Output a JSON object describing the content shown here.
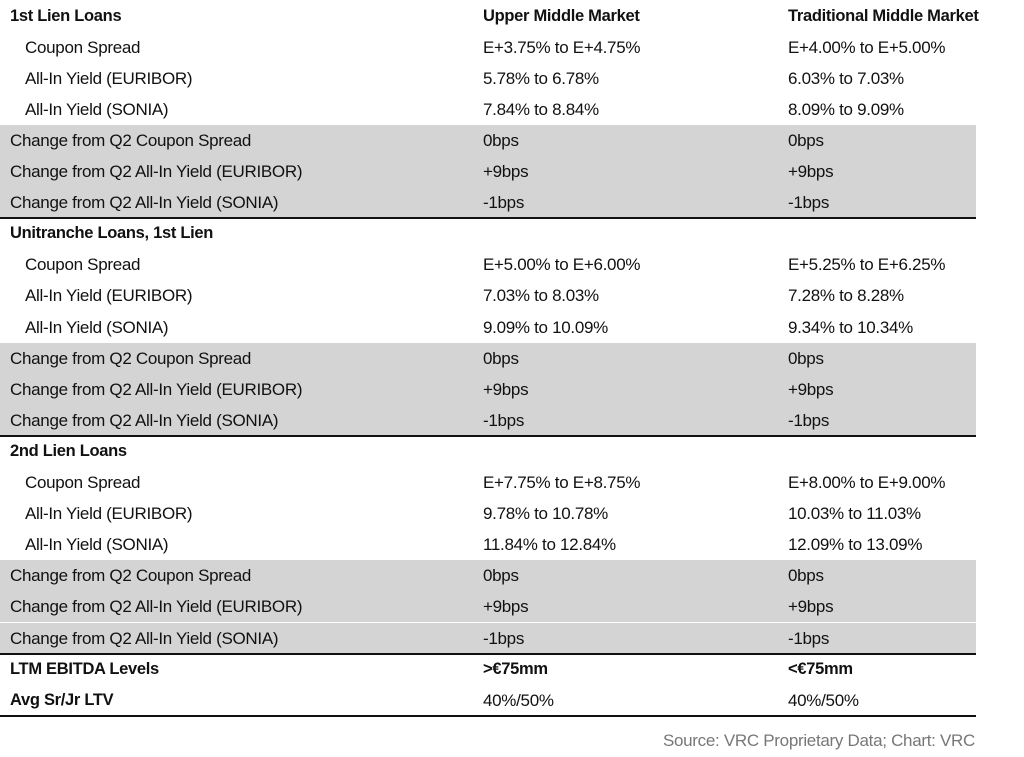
{
  "table": {
    "header": [
      "1st Lien Loans",
      "Upper Middle Market",
      "Traditional Middle Market"
    ],
    "sections": [
      {
        "rows": [
          [
            "Coupon Spread",
            "E+3.75% to E+4.75%",
            "E+4.00% to E+5.00%"
          ],
          [
            "All-In Yield (EURIBOR)",
            "5.78% to 6.78%",
            "6.03% to 7.03%"
          ],
          [
            "All-In Yield (SONIA)",
            "7.84% to 8.84%",
            "8.09% to 9.09%"
          ]
        ],
        "changes": [
          [
            "Change from Q2 Coupon Spread",
            "0bps",
            "0bps"
          ],
          [
            "Change from Q2 All-In Yield (EURIBOR)",
            "+9bps",
            "+9bps"
          ],
          [
            "Change from Q2 All-In Yield (SONIA)",
            "-1bps",
            "-1bps"
          ]
        ]
      },
      {
        "title": "Unitranche Loans, 1st Lien",
        "rows": [
          [
            "Coupon Spread",
            "E+5.00% to E+6.00%",
            "E+5.25% to E+6.25%"
          ],
          [
            "All-In Yield (EURIBOR)",
            "7.03% to 8.03%",
            "7.28% to 8.28%"
          ],
          [
            "All-In Yield (SONIA)",
            "9.09% to 10.09%",
            "9.34% to 10.34%"
          ]
        ],
        "changes": [
          [
            "Change from Q2 Coupon Spread",
            "0bps",
            "0bps"
          ],
          [
            "Change from Q2 All-In Yield (EURIBOR)",
            "+9bps",
            "+9bps"
          ],
          [
            "Change from Q2 All-In Yield (SONIA)",
            "-1bps",
            "-1bps"
          ]
        ]
      },
      {
        "title": "2nd Lien Loans",
        "rows": [
          [
            "Coupon Spread",
            "E+7.75% to E+8.75%",
            "E+8.00% to E+9.00%"
          ],
          [
            "All-In Yield (EURIBOR)",
            "9.78% to 10.78%",
            "10.03% to 11.03%"
          ],
          [
            "All-In Yield (SONIA)",
            "11.84% to 12.84%",
            "12.09% to 13.09%"
          ]
        ],
        "changes": [
          [
            "Change from Q2 Coupon Spread",
            "0bps",
            "0bps"
          ],
          [
            "Change from Q2 All-In Yield (EURIBOR)",
            "+9bps",
            "+9bps"
          ],
          [
            "Change from Q2 All-In Yield (SONIA)",
            "-1bps",
            "-1bps"
          ]
        ]
      }
    ],
    "summary": [
      [
        "LTM EBITDA Levels",
        ">€75mm",
        "<€75mm"
      ],
      [
        "Avg Sr/Jr LTV",
        "40%/50%",
        "40%/50%"
      ]
    ],
    "source": "Source: VRC Proprietary Data; Chart: VRC"
  }
}
